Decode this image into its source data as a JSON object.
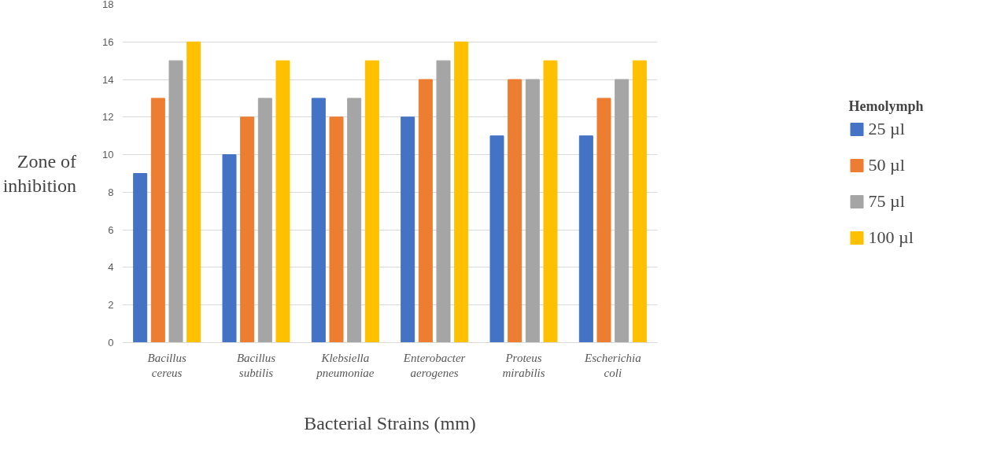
{
  "chart_data": {
    "type": "bar",
    "xlabel": "Bacterial Strains (mm)",
    "ylabel": "Zone of inhibition",
    "legend_title": "Hemolymph",
    "categories": [
      "Bacillus cereus",
      "Bacillus subtilis",
      "Klebsiella pneumoniae",
      "Enterobacter aerogenes",
      "Proteus mirabilis",
      "Escherichia coli"
    ],
    "series": [
      {
        "name": "25 µl",
        "color": "#4472c4",
        "values": [
          9,
          10,
          13,
          12,
          11,
          11
        ]
      },
      {
        "name": "50 µl",
        "color": "#ed7d31",
        "values": [
          13,
          12,
          12,
          14,
          14,
          13
        ]
      },
      {
        "name": "75 µl",
        "color": "#a5a5a5",
        "values": [
          15,
          13,
          13,
          15,
          14,
          14
        ]
      },
      {
        "name": "100 µl",
        "color": "#ffc000",
        "values": [
          16,
          15,
          15,
          16,
          15,
          15
        ]
      }
    ],
    "ylim": [
      0,
      18
    ],
    "yticks": [
      0,
      2,
      4,
      6,
      8,
      10,
      12,
      14,
      16,
      18
    ],
    "grid": "y",
    "legend": "right"
  }
}
